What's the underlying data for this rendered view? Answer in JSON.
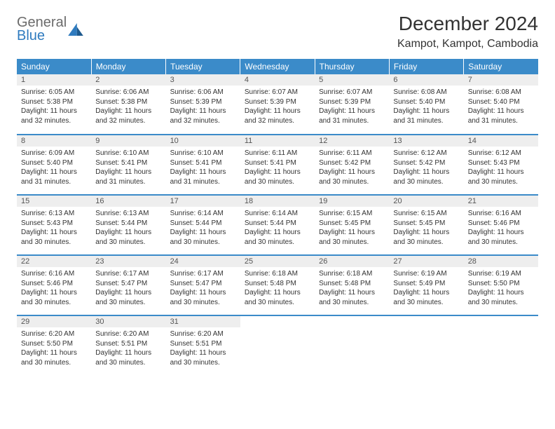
{
  "logo": {
    "text1": "General",
    "text2": "Blue",
    "color_gray": "#6b6b6b",
    "color_blue": "#2f7bbf"
  },
  "title": "December 2024",
  "location": "Kampot, Kampot, Cambodia",
  "header_bg": "#3b8bc9",
  "header_fg": "#ffffff",
  "daynum_bg": "#eeeeee",
  "text_color": "#333333",
  "dow": [
    "Sunday",
    "Monday",
    "Tuesday",
    "Wednesday",
    "Thursday",
    "Friday",
    "Saturday"
  ],
  "weeks": [
    [
      {
        "n": "1",
        "sr": "6:05 AM",
        "ss": "5:38 PM",
        "dl": "11 hours and 32 minutes."
      },
      {
        "n": "2",
        "sr": "6:06 AM",
        "ss": "5:38 PM",
        "dl": "11 hours and 32 minutes."
      },
      {
        "n": "3",
        "sr": "6:06 AM",
        "ss": "5:39 PM",
        "dl": "11 hours and 32 minutes."
      },
      {
        "n": "4",
        "sr": "6:07 AM",
        "ss": "5:39 PM",
        "dl": "11 hours and 32 minutes."
      },
      {
        "n": "5",
        "sr": "6:07 AM",
        "ss": "5:39 PM",
        "dl": "11 hours and 31 minutes."
      },
      {
        "n": "6",
        "sr": "6:08 AM",
        "ss": "5:40 PM",
        "dl": "11 hours and 31 minutes."
      },
      {
        "n": "7",
        "sr": "6:08 AM",
        "ss": "5:40 PM",
        "dl": "11 hours and 31 minutes."
      }
    ],
    [
      {
        "n": "8",
        "sr": "6:09 AM",
        "ss": "5:40 PM",
        "dl": "11 hours and 31 minutes."
      },
      {
        "n": "9",
        "sr": "6:10 AM",
        "ss": "5:41 PM",
        "dl": "11 hours and 31 minutes."
      },
      {
        "n": "10",
        "sr": "6:10 AM",
        "ss": "5:41 PM",
        "dl": "11 hours and 31 minutes."
      },
      {
        "n": "11",
        "sr": "6:11 AM",
        "ss": "5:41 PM",
        "dl": "11 hours and 30 minutes."
      },
      {
        "n": "12",
        "sr": "6:11 AM",
        "ss": "5:42 PM",
        "dl": "11 hours and 30 minutes."
      },
      {
        "n": "13",
        "sr": "6:12 AM",
        "ss": "5:42 PM",
        "dl": "11 hours and 30 minutes."
      },
      {
        "n": "14",
        "sr": "6:12 AM",
        "ss": "5:43 PM",
        "dl": "11 hours and 30 minutes."
      }
    ],
    [
      {
        "n": "15",
        "sr": "6:13 AM",
        "ss": "5:43 PM",
        "dl": "11 hours and 30 minutes."
      },
      {
        "n": "16",
        "sr": "6:13 AM",
        "ss": "5:44 PM",
        "dl": "11 hours and 30 minutes."
      },
      {
        "n": "17",
        "sr": "6:14 AM",
        "ss": "5:44 PM",
        "dl": "11 hours and 30 minutes."
      },
      {
        "n": "18",
        "sr": "6:14 AM",
        "ss": "5:44 PM",
        "dl": "11 hours and 30 minutes."
      },
      {
        "n": "19",
        "sr": "6:15 AM",
        "ss": "5:45 PM",
        "dl": "11 hours and 30 minutes."
      },
      {
        "n": "20",
        "sr": "6:15 AM",
        "ss": "5:45 PM",
        "dl": "11 hours and 30 minutes."
      },
      {
        "n": "21",
        "sr": "6:16 AM",
        "ss": "5:46 PM",
        "dl": "11 hours and 30 minutes."
      }
    ],
    [
      {
        "n": "22",
        "sr": "6:16 AM",
        "ss": "5:46 PM",
        "dl": "11 hours and 30 minutes."
      },
      {
        "n": "23",
        "sr": "6:17 AM",
        "ss": "5:47 PM",
        "dl": "11 hours and 30 minutes."
      },
      {
        "n": "24",
        "sr": "6:17 AM",
        "ss": "5:47 PM",
        "dl": "11 hours and 30 minutes."
      },
      {
        "n": "25",
        "sr": "6:18 AM",
        "ss": "5:48 PM",
        "dl": "11 hours and 30 minutes."
      },
      {
        "n": "26",
        "sr": "6:18 AM",
        "ss": "5:48 PM",
        "dl": "11 hours and 30 minutes."
      },
      {
        "n": "27",
        "sr": "6:19 AM",
        "ss": "5:49 PM",
        "dl": "11 hours and 30 minutes."
      },
      {
        "n": "28",
        "sr": "6:19 AM",
        "ss": "5:50 PM",
        "dl": "11 hours and 30 minutes."
      }
    ],
    [
      {
        "n": "29",
        "sr": "6:20 AM",
        "ss": "5:50 PM",
        "dl": "11 hours and 30 minutes."
      },
      {
        "n": "30",
        "sr": "6:20 AM",
        "ss": "5:51 PM",
        "dl": "11 hours and 30 minutes."
      },
      {
        "n": "31",
        "sr": "6:20 AM",
        "ss": "5:51 PM",
        "dl": "11 hours and 30 minutes."
      },
      null,
      null,
      null,
      null
    ]
  ],
  "labels": {
    "sunrise": "Sunrise:",
    "sunset": "Sunset:",
    "daylight": "Daylight:"
  }
}
